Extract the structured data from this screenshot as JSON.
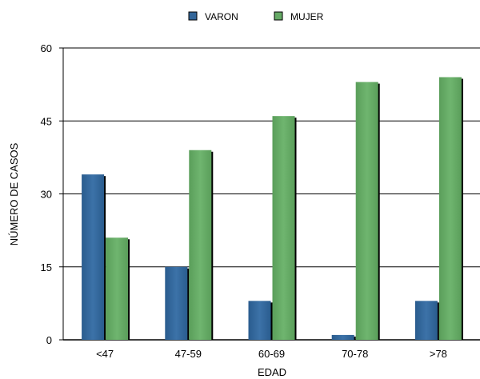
{
  "chart_data": {
    "type": "bar",
    "title": "",
    "xlabel": "EDAD",
    "ylabel": "NÚMERO DE CASOS",
    "categories": [
      "<47",
      "47-59",
      "60-69",
      "70-78",
      ">78"
    ],
    "series": [
      {
        "name": "VARON",
        "values": [
          34,
          15,
          8,
          1,
          8
        ],
        "color": "#336699"
      },
      {
        "name": "MUJER",
        "values": [
          21,
          39,
          46,
          53,
          54
        ],
        "color": "#66aa66"
      }
    ],
    "ylim": [
      0,
      60
    ],
    "yticks": [
      0,
      15,
      30,
      45,
      60
    ],
    "grid": true,
    "legend_position": "top"
  }
}
